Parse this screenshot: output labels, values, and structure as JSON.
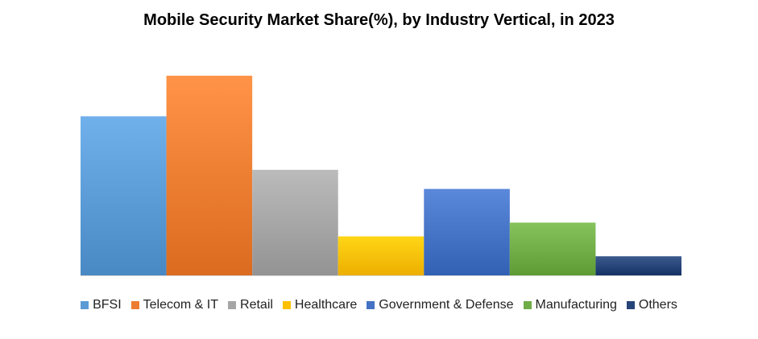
{
  "chart_data": {
    "type": "bar",
    "title": "Mobile Security Market Share(%), by Industry Vertical, in 2023",
    "xlabel": "",
    "ylabel": "",
    "ylim": [
      0,
      26
    ],
    "grid": false,
    "legend_placement": "bottom",
    "categories": [
      "BFSI",
      "Telecom & IT",
      "Retail",
      "Healthcare",
      "Government & Defense",
      "Manufacturing",
      "Others"
    ],
    "values": [
      20.8,
      26.1,
      13.8,
      5.1,
      11.3,
      6.9,
      2.5
    ],
    "colors": [
      "#5b9bd5",
      "#ed7d31",
      "#a5a5a5",
      "#ffc000",
      "#4472c4",
      "#70ad47",
      "#264478"
    ]
  }
}
